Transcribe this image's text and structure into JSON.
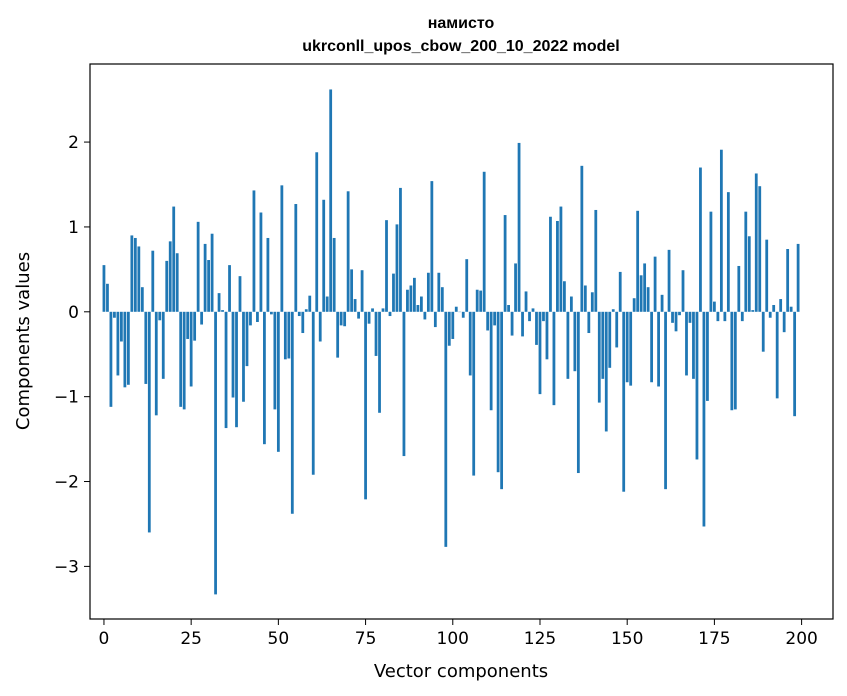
{
  "chart_data": {
    "type": "bar",
    "title_line1": "намисто",
    "title_line2": "ukrconll_upos_cbow_200_10_2022 model",
    "xlabel": "Vector components",
    "ylabel": "Components values",
    "xlim": [
      -4,
      209
    ],
    "ylim": [
      -3.62,
      2.92
    ],
    "xticks": [
      0,
      25,
      50,
      75,
      100,
      125,
      150,
      175,
      200
    ],
    "yticks": [
      -3,
      -2,
      -1,
      0,
      1,
      2
    ],
    "ytick_labels": [
      "−3",
      "−2",
      "−1",
      "0",
      "1",
      "2"
    ],
    "bar_color": "#1f77b4",
    "grid": false,
    "x": [
      0,
      1,
      2,
      3,
      4,
      5,
      6,
      7,
      8,
      9,
      10,
      11,
      12,
      13,
      14,
      15,
      16,
      17,
      18,
      19,
      20,
      21,
      22,
      23,
      24,
      25,
      26,
      27,
      28,
      29,
      30,
      31,
      32,
      33,
      34,
      35,
      36,
      37,
      38,
      39,
      40,
      41,
      42,
      43,
      44,
      45,
      46,
      47,
      48,
      49,
      50,
      51,
      52,
      53,
      54,
      55,
      56,
      57,
      58,
      59,
      60,
      61,
      62,
      63,
      64,
      65,
      66,
      67,
      68,
      69,
      70,
      71,
      72,
      73,
      74,
      75,
      76,
      77,
      78,
      79,
      80,
      81,
      82,
      83,
      84,
      85,
      86,
      87,
      88,
      89,
      90,
      91,
      92,
      93,
      94,
      95,
      96,
      97,
      98,
      99,
      100,
      101,
      102,
      103,
      104,
      105,
      106,
      107,
      108,
      109,
      110,
      111,
      112,
      113,
      114,
      115,
      116,
      117,
      118,
      119,
      120,
      121,
      122,
      123,
      124,
      125,
      126,
      127,
      128,
      129,
      130,
      131,
      132,
      133,
      134,
      135,
      136,
      137,
      138,
      139,
      140,
      141,
      142,
      143,
      144,
      145,
      146,
      147,
      148,
      149,
      150,
      151,
      152,
      153,
      154,
      155,
      156,
      157,
      158,
      159,
      160,
      161,
      162,
      163,
      164,
      165,
      166,
      167,
      168,
      169,
      170,
      171,
      172,
      173,
      174,
      175,
      176,
      177,
      178,
      179,
      180,
      181,
      182,
      183,
      184,
      185,
      186,
      187,
      188,
      189,
      190,
      191,
      192,
      193,
      194,
      195,
      196,
      197,
      198,
      199
    ],
    "values": [
      0.55,
      0.33,
      -1.12,
      -0.07,
      -0.75,
      -0.35,
      -0.89,
      -0.86,
      0.9,
      0.87,
      0.77,
      0.29,
      -0.85,
      -2.6,
      0.72,
      -1.22,
      -0.1,
      -0.79,
      0.6,
      0.83,
      1.24,
      0.69,
      -1.12,
      -1.15,
      -0.32,
      -0.88,
      -0.34,
      1.06,
      -0.15,
      0.8,
      0.61,
      0.92,
      -3.33,
      0.22,
      0.02,
      -1.37,
      0.55,
      -1.01,
      -1.36,
      0.42,
      -1.06,
      -0.64,
      -0.16,
      1.43,
      -0.12,
      1.17,
      -1.56,
      0.87,
      -0.03,
      -1.15,
      -1.65,
      1.49,
      -0.56,
      -0.55,
      -2.38,
      1.27,
      -0.05,
      -0.25,
      0.03,
      0.19,
      -1.92,
      1.88,
      -0.35,
      1.32,
      0.18,
      2.62,
      0.87,
      -0.54,
      -0.16,
      -0.17,
      1.42,
      0.5,
      0.15,
      -0.08,
      0.49,
      -2.21,
      -0.14,
      0.04,
      -0.52,
      -1.19,
      0.04,
      1.08,
      -0.05,
      0.45,
      1.03,
      1.46,
      -1.7,
      0.26,
      0.31,
      0.4,
      0.08,
      0.18,
      -0.09,
      0.46,
      1.54,
      -0.18,
      0.46,
      0.29,
      -2.77,
      -0.4,
      -0.32,
      0.06,
      0.0,
      -0.07,
      0.62,
      -0.75,
      -1.93,
      0.26,
      0.25,
      1.65,
      -0.22,
      -1.16,
      -0.16,
      -1.89,
      -2.09,
      1.14,
      0.08,
      -0.28,
      0.57,
      1.99,
      -0.29,
      0.24,
      -0.11,
      0.04,
      -0.39,
      -0.97,
      -0.11,
      -0.56,
      1.12,
      -1.1,
      1.07,
      1.24,
      0.36,
      -0.79,
      0.18,
      -0.7,
      -1.9,
      1.72,
      0.31,
      -0.25,
      0.23,
      1.2,
      -1.07,
      -0.79,
      -1.41,
      -0.66,
      0.03,
      -0.42,
      0.47,
      -2.12,
      -0.83,
      -0.87,
      0.16,
      1.19,
      0.43,
      0.57,
      0.29,
      -0.83,
      0.65,
      -0.88,
      0.2,
      -2.09,
      0.73,
      -0.13,
      -0.23,
      -0.04,
      0.49,
      -0.75,
      -0.13,
      -0.79,
      -1.74,
      1.7,
      -2.53,
      -1.05,
      1.18,
      0.12,
      -0.11,
      1.91,
      -0.11,
      1.41,
      -1.16,
      -1.15,
      0.54,
      -0.11,
      1.18,
      0.89,
      0.02,
      1.63,
      1.48,
      -0.47,
      0.85,
      -0.07,
      0.08,
      -1.02,
      0.15,
      -0.24,
      0.74,
      0.06,
      -1.23,
      0.8
    ]
  }
}
